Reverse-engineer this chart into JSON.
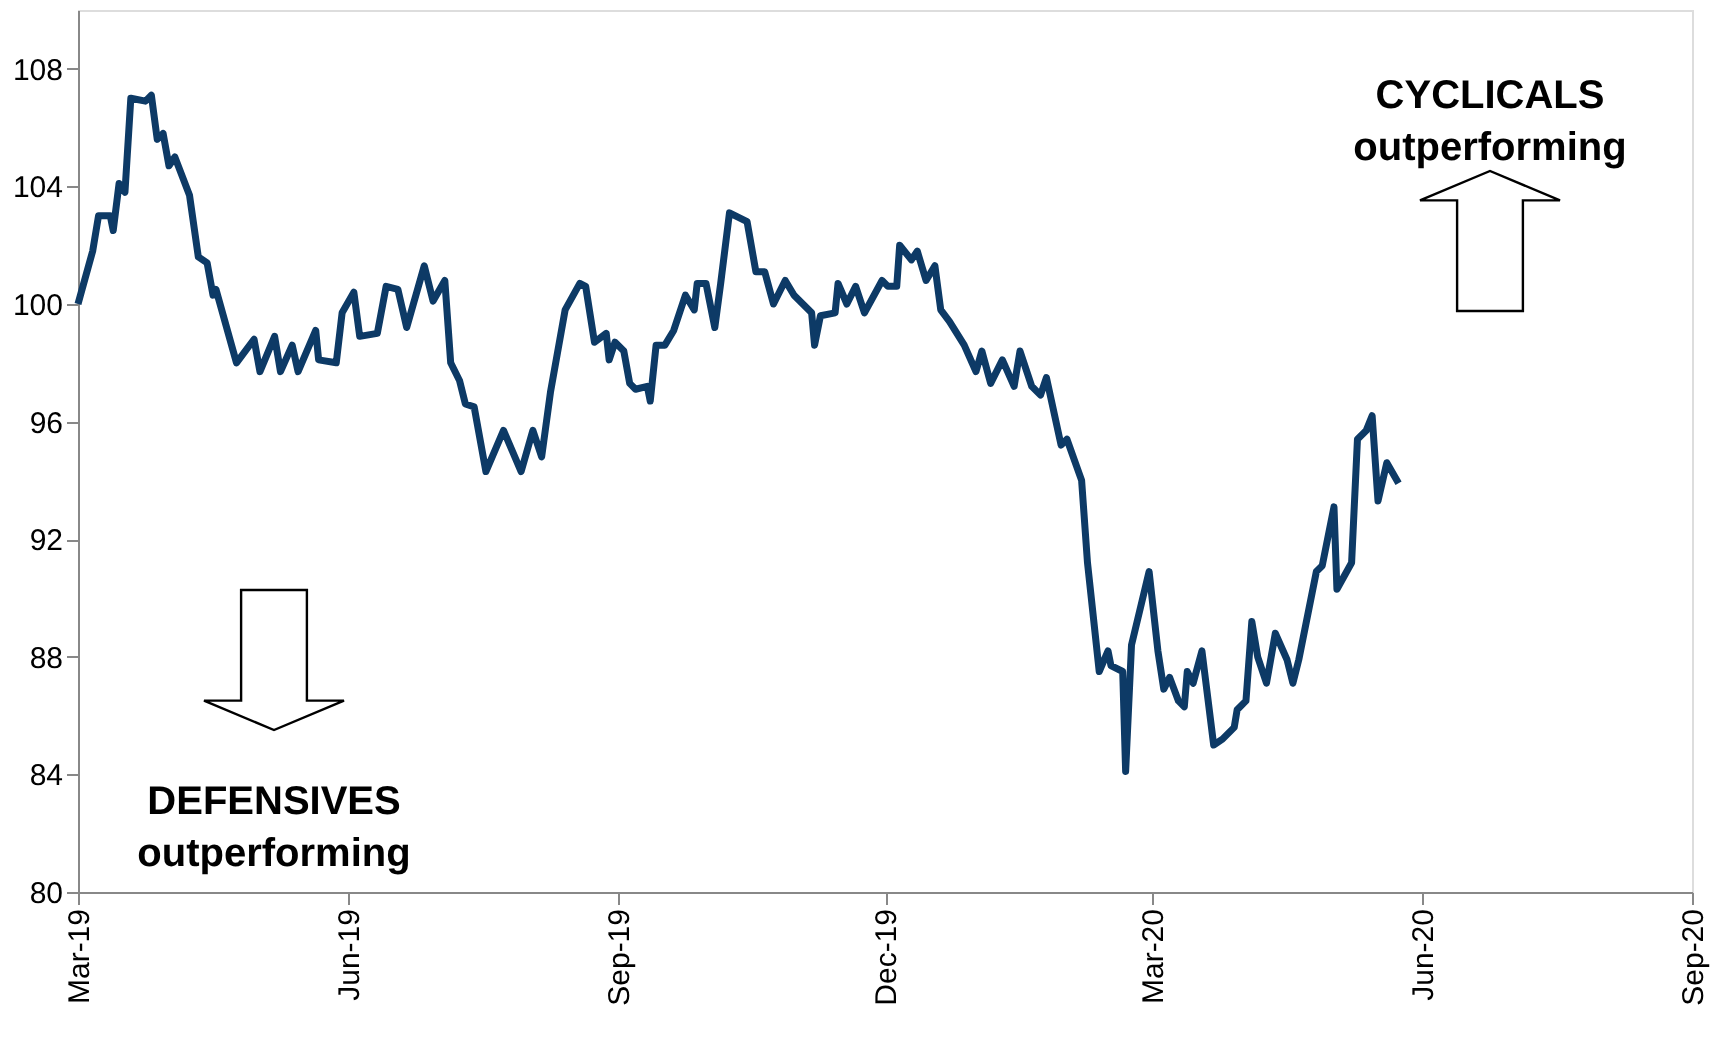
{
  "chart_data": {
    "type": "line",
    "x": [
      "2019-03-01",
      "2019-03-06",
      "2019-03-08",
      "2019-03-12",
      "2019-03-13",
      "2019-03-15",
      "2019-03-17",
      "2019-03-19",
      "2019-03-24",
      "2019-03-26",
      "2019-03-28",
      "2019-03-30",
      "2019-04-01",
      "2019-04-03",
      "2019-04-08",
      "2019-04-11",
      "2019-04-14",
      "2019-04-16",
      "2019-04-17",
      "2019-04-24",
      "2019-04-30",
      "2019-05-02",
      "2019-05-07",
      "2019-05-09",
      "2019-05-13",
      "2019-05-15",
      "2019-05-21",
      "2019-05-22",
      "2019-05-28",
      "2019-05-30",
      "2019-06-03",
      "2019-06-05",
      "2019-06-11",
      "2019-06-14",
      "2019-06-18",
      "2019-06-21",
      "2019-06-27",
      "2019-06-30",
      "2019-07-04",
      "2019-07-06",
      "2019-07-09",
      "2019-07-11",
      "2019-07-14",
      "2019-07-18",
      "2019-07-24",
      "2019-07-30",
      "2019-08-03",
      "2019-08-06",
      "2019-08-09",
      "2019-08-14",
      "2019-08-19",
      "2019-08-21",
      "2019-08-24",
      "2019-08-28",
      "2019-08-29",
      "2019-08-31",
      "2019-09-03",
      "2019-09-05",
      "2019-09-07",
      "2019-09-11",
      "2019-09-12",
      "2019-09-14",
      "2019-09-17",
      "2019-09-20",
      "2019-09-24",
      "2019-09-27",
      "2019-09-28",
      "2019-10-01",
      "2019-10-04",
      "2019-10-06",
      "2019-10-09",
      "2019-10-15",
      "2019-10-18",
      "2019-10-21",
      "2019-10-24",
      "2019-10-28",
      "2019-10-31",
      "2019-11-06",
      "2019-11-07",
      "2019-11-09",
      "2019-11-14",
      "2019-11-15",
      "2019-11-18",
      "2019-11-21",
      "2019-11-24",
      "2019-11-30",
      "2019-12-02",
      "2019-12-05",
      "2019-12-06",
      "2019-12-10",
      "2019-12-12",
      "2019-12-15",
      "2019-12-18",
      "2019-12-20",
      "2019-12-23",
      "2019-12-28",
      "2020-01-01",
      "2020-01-03",
      "2020-01-06",
      "2020-01-10",
      "2020-01-14",
      "2020-01-16",
      "2020-01-20",
      "2020-01-23",
      "2020-01-25",
      "2020-01-30",
      "2020-02-01",
      "2020-02-06",
      "2020-02-08",
      "2020-02-12",
      "2020-02-15",
      "2020-02-16",
      "2020-02-20",
      "2020-02-21",
      "2020-02-23",
      "2020-02-29",
      "2020-03-03",
      "2020-03-05",
      "2020-03-07",
      "2020-03-10",
      "2020-03-12",
      "2020-03-13",
      "2020-03-15",
      "2020-03-18",
      "2020-03-22",
      "2020-03-25",
      "2020-03-29",
      "2020-03-30",
      "2020-04-02",
      "2020-04-04",
      "2020-04-06",
      "2020-04-09",
      "2020-04-12",
      "2020-04-16",
      "2020-04-18",
      "2020-04-20",
      "2020-04-26",
      "2020-04-28",
      "2020-05-02",
      "2020-05-03",
      "2020-05-08",
      "2020-05-10",
      "2020-05-13",
      "2020-05-15",
      "2020-05-17",
      "2020-05-20",
      "2020-05-24"
    ],
    "series": [
      {
        "color": "#0d3a66",
        "values": [
          100,
          101.8,
          103,
          103,
          102.5,
          104.1,
          103.8,
          107,
          106.9,
          107.1,
          105.6,
          105.8,
          104.7,
          105,
          103.7,
          101.6,
          101.4,
          100.3,
          100.5,
          98.0,
          98.8,
          97.7,
          98.9,
          97.7,
          98.6,
          97.7,
          99.1,
          98.1,
          98.0,
          99.7,
          100.4,
          98.9,
          99.0,
          100.6,
          100.5,
          99.2,
          101.3,
          100.1,
          100.8,
          98.0,
          97.4,
          96.6,
          96.5,
          94.3,
          95.7,
          94.3,
          95.7,
          94.8,
          97.0,
          99.8,
          100.7,
          100.6,
          98.7,
          99.0,
          98.1,
          98.7,
          98.4,
          97.3,
          97.1,
          97.2,
          96.7,
          98.6,
          98.6,
          99.1,
          100.3,
          99.8,
          100.7,
          100.7,
          99.2,
          100.7,
          103.1,
          102.8,
          101.1,
          101.1,
          100.0,
          100.8,
          100.3,
          99.7,
          98.6,
          99.6,
          99.7,
          100.7,
          100.0,
          100.6,
          99.7,
          100.8,
          100.6,
          100.6,
          102.0,
          101.5,
          101.8,
          100.8,
          101.3,
          99.8,
          99.4,
          98.6,
          97.7,
          98.4,
          97.3,
          98.1,
          97.2,
          98.4,
          97.2,
          96.9,
          97.5,
          95.2,
          95.4,
          94.0,
          91.2,
          87.5,
          88.2,
          87.7,
          87.5,
          84.1,
          88.4,
          90.9,
          88.2,
          86.9,
          87.3,
          86.5,
          86.3,
          87.5,
          87.1,
          88.2,
          85.0,
          85.2,
          85.6,
          86.2,
          86.5,
          89.2,
          88.0,
          87.1,
          88.8,
          87.9,
          87.1,
          87.9,
          90.9,
          91.1,
          93.1,
          90.3,
          91.2,
          95.4,
          95.7,
          96.2,
          93.3,
          94.6,
          93.9
        ]
      }
    ],
    "xlim": [
      "2019-03-01",
      "2020-09-01"
    ],
    "xticks": [
      {
        "value": "2019-03-01",
        "label": "Mar-19"
      },
      {
        "value": "2019-06-01",
        "label": "Jun-19"
      },
      {
        "value": "2019-09-01",
        "label": "Sep-19"
      },
      {
        "value": "2019-12-01",
        "label": "Dec-19"
      },
      {
        "value": "2020-03-01",
        "label": "Mar-20"
      },
      {
        "value": "2020-06-01",
        "label": "Jun-20"
      },
      {
        "value": "2020-09-01",
        "label": "Sep-20"
      }
    ],
    "ylim": [
      80,
      110
    ],
    "yticks": [
      80,
      84,
      88,
      92,
      96,
      100,
      104,
      108
    ],
    "grid": false,
    "marker": "none",
    "line_style": "solid",
    "annotations": [
      "CYCLICALS\noutperforming",
      "DEFENSIVES\noutperforming"
    ]
  }
}
